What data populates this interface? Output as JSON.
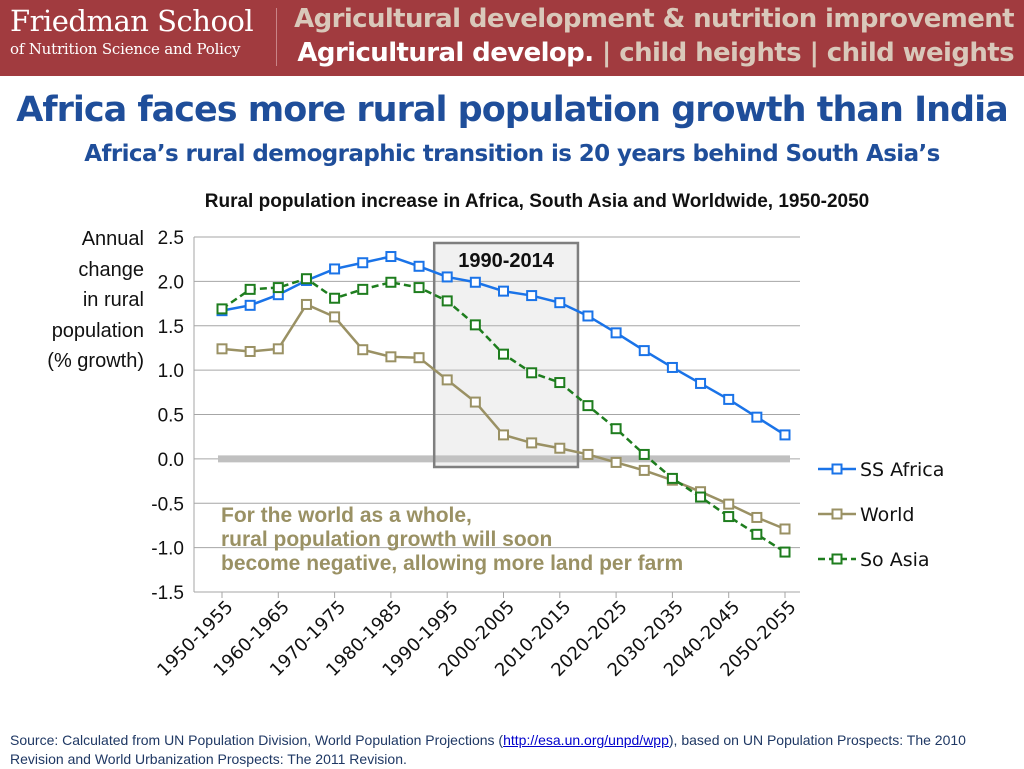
{
  "header": {
    "logo_line1": "Friedman School",
    "logo_line2": "of Nutrition Science and Policy",
    "topic": "Agricultural development & nutrition improvement",
    "nav": [
      {
        "label": "Agricultural develop.",
        "active": true
      },
      {
        "label": "child heights",
        "active": false
      },
      {
        "label": "child weights",
        "active": false
      }
    ],
    "nav_separator": "|"
  },
  "slide": {
    "title": "Africa faces more rural population growth than India",
    "subtitle": "Africa’s rural demographic transition is 20 years behind South Asia’s"
  },
  "chart_data": {
    "type": "line",
    "title": "Rural population increase in Africa, South Asia and Worldwide, 1950-2050",
    "ylabel_lines": [
      "Annual",
      "change",
      "in rural",
      "population",
      "(% growth)"
    ],
    "ylim": [
      -1.5,
      2.5
    ],
    "yticks": [
      "2.5",
      "2.0",
      "1.5",
      "1.0",
      "0.5",
      "0.0",
      "-0.5",
      "-1.0",
      "-1.5"
    ],
    "x_labels": [
      "1950-1955",
      "1960-1965",
      "1970-1975",
      "1980-1985",
      "1990-1995",
      "2000-2005",
      "2010-2015",
      "2020-2025",
      "2030-2035",
      "2040-2045",
      "2050-2055"
    ],
    "grid": true,
    "legend_position": "right",
    "highlight": {
      "label": "1990-2014",
      "from_index": 8,
      "to_index": 13
    },
    "annotation": [
      "For the world as a whole,",
      "rural population growth will soon",
      "become negative, allowing more land per farm"
    ],
    "series": [
      {
        "name": "SS Africa",
        "color": "#1a73e8",
        "dashed": false,
        "values": [
          1.67,
          1.73,
          1.85,
          2.01,
          2.14,
          2.21,
          2.28,
          2.17,
          2.05,
          1.99,
          1.89,
          1.84,
          1.76,
          1.61,
          1.42,
          1.22,
          1.03,
          0.85,
          0.67,
          0.47,
          0.27
        ]
      },
      {
        "name": "World",
        "color": "#9a9164",
        "dashed": false,
        "values": [
          1.24,
          1.21,
          1.24,
          1.74,
          1.6,
          1.23,
          1.15,
          1.14,
          0.89,
          0.64,
          0.27,
          0.18,
          0.12,
          0.05,
          -0.04,
          -0.13,
          -0.24,
          -0.37,
          -0.51,
          -0.66,
          -0.79
        ]
      },
      {
        "name": "So Asia",
        "color": "#1e7d1e",
        "dashed": true,
        "values": [
          1.69,
          1.91,
          1.93,
          2.03,
          1.81,
          1.91,
          1.99,
          1.93,
          1.78,
          1.51,
          1.18,
          0.97,
          0.86,
          0.6,
          0.34,
          0.05,
          -0.22,
          -0.43,
          -0.65,
          -0.85,
          -1.05
        ]
      }
    ]
  },
  "source": {
    "prefix": "Source:  Calculated from UN Population Division, World Population Projections (",
    "link": "http://esa.un.org/unpd/wpp",
    "suffix": "), based on UN Population Prospects: The 2010 Revision and World Urbanization Prospects: The 2011 Revision."
  }
}
